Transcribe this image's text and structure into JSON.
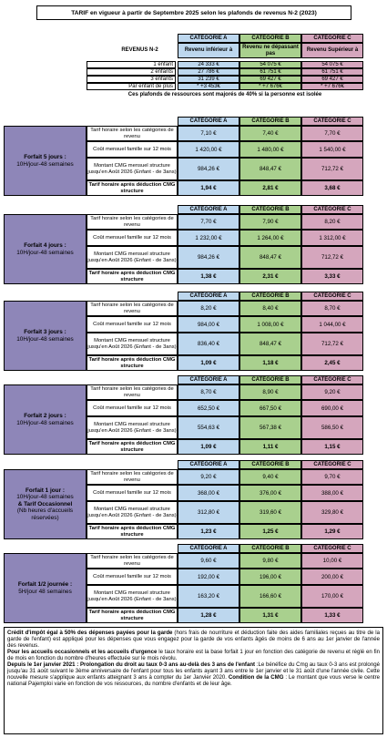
{
  "title": "TARIF en vigueur à partir de Septembre 2025 selon les plafonds de revenus N-2 (2023)",
  "revenus": {
    "label": "REVENUS N-2",
    "headers": [
      "CATÉGORIE A",
      "CATÉGORIE B",
      "CATÉGORIE C"
    ],
    "subheaders": [
      "Revenu inférieur à",
      "Revenu ne dépassant pas",
      "Revenu Supérieur à"
    ],
    "rows": [
      {
        "label": "1 enfant",
        "a": "24 333 €",
        "b": "54 075 €",
        "c": "54 075 €"
      },
      {
        "label": "2 enfants",
        "a": "27 786 €",
        "b": "61 751 €",
        "c": "61 751 €"
      },
      {
        "label": "3 enfants",
        "a": "31 239 €",
        "b": "69 427 €",
        "c": "69 427 €"
      },
      {
        "label": "Par enfant de plus",
        "a": "* +3 453€",
        "b": "* +7 676€",
        "c": "* +7 676€"
      }
    ],
    "note": "Ces plafonds de ressources sont majorés de 40% si la personne est isolée"
  },
  "tarif_header": [
    "CATÉGORIE A",
    "CATÉGORIE B",
    "CATÉGORIE C"
  ],
  "row_labels": [
    "Tarif horaire selon les catégories de revenu",
    "Coût mensuel famille sur 12 mois",
    "Montant CMG mensuel structure jusqu'en Août 2026 (Enfant - de 3ans)",
    "Tarif horaire après déduction CMG structure"
  ],
  "forfaits": [
    {
      "title": "Forfait 5 jours :",
      "sub": "10H/jour-48 semaines",
      "extra": "",
      "extra2": "",
      "rows": [
        [
          "7,10 €",
          "7,40 €",
          "7,70 €"
        ],
        [
          "1 420,00 €",
          "1 480,00 €",
          "1 540,00 €"
        ],
        [
          "984,26 €",
          "848,47 €",
          "712,72 €"
        ],
        [
          "1,94 €",
          "2,81 €",
          "3,68 €"
        ]
      ]
    },
    {
      "title": "Forfait 4 jours :",
      "sub": "10H/jour-48 semaines",
      "extra": "",
      "extra2": "",
      "rows": [
        [
          "7,70 €",
          "7,90 €",
          "8,20 €"
        ],
        [
          "1 232,00 €",
          "1 264,00 €",
          "1 312,00 €"
        ],
        [
          "984,26 €",
          "848,47 €",
          "712,72 €"
        ],
        [
          "1,38 €",
          "2,31 €",
          "3,33 €"
        ]
      ]
    },
    {
      "title": "Forfait 3 jours :",
      "sub": "10H/jour-48 semaines",
      "extra": "",
      "extra2": "",
      "rows": [
        [
          "8,20 €",
          "8,40 €",
          "8,70 €"
        ],
        [
          "984,00 €",
          "1 008,00 €",
          "1 044,00 €"
        ],
        [
          "836,40 €",
          "848,47 €",
          "712,72 €"
        ],
        [
          "1,09 €",
          "1,18 €",
          "2,45 €"
        ]
      ]
    },
    {
      "title": "Forfait 2 jours :",
      "sub": "10H/jour-48 semaines",
      "extra": "",
      "extra2": "",
      "rows": [
        [
          "8,70 €",
          "8,90 €",
          "9,20 €"
        ],
        [
          "652,50 €",
          "667,50 €",
          "690,00 €"
        ],
        [
          "554,63 €",
          "567,38 €",
          "586,50 €"
        ],
        [
          "1,09 €",
          "1,11 €",
          "1,15 €"
        ]
      ]
    },
    {
      "title": "Forfait 1 jour :",
      "sub": "10H/jour-48 semaines",
      "extra": "& Tarif Occasionnel",
      "extra2": "(Nb heures d'accueils réservées)",
      "rows": [
        [
          "9,20 €",
          "9,40 €",
          "9,70 €"
        ],
        [
          "368,00 €",
          "376,00 €",
          "388,00 €"
        ],
        [
          "312,80 €",
          "319,60 €",
          "329,80 €"
        ],
        [
          "1,23 €",
          "1,25 €",
          "1,29 €"
        ]
      ]
    },
    {
      "title": "Forfait 1/2 journée :",
      "sub": "5H/jour 48 semaines",
      "extra": "",
      "extra2": "",
      "rows": [
        [
          "9,60 €",
          "9,80 €",
          "10,00 €"
        ],
        [
          "192,00 €",
          "196,00 €",
          "200,00 €"
        ],
        [
          "163,20 €",
          "166,60 €",
          "170,00 €"
        ],
        [
          "1,28 €",
          "1,31 €",
          "1,33 €"
        ]
      ]
    }
  ],
  "notes": {
    "p1_bold": "Crédit d'impôt égal à 50% des dépenses payées pour la garde",
    "p1": " (hors frais de nourriture et déduction faite des aides familiales reçues au titre de la garde de l'enfant) est appliqué pour les dépenses que vous engagez pour la garde de vos enfants âgés de moins de 6 ans au 1er janvier de l'année des revenus.",
    "p2_bold": "Pour les accueils occasionnels et les accueils d'urgence",
    "p2": " le taux horaire est la base forfait 1 jour en fonction des catégorie de revenu et réglé en fin de mois en fonction du nombre d'heures effectuée sur le mois révolu.",
    "p3_bold1": "Depuis le 1er janvier 2021 : Prolongation du droit au taux 0-3 ans au-delà des 3 ans de l'enfant",
    "p3": " :Le bénéfice du Cmg au taux 0-3 ans est prolongé jusqu'au 31 août suivant le 3ème anniversaire de l'enfant pour tous les enfants ayant 3 ans entre le 1er janvier et le 31 août d'une l'année civile. Cette nouvelle mesure s'applique aux enfants atteignant 3 ans à compter du 1er Janvier 2020.",
    "p3_bold2": "Condition de la CMG",
    "p3_end": " : Le montant que vous verse le centre national Pajemploi varie en fonction de vos ressources, du nombre d'enfants et de leur âge."
  }
}
